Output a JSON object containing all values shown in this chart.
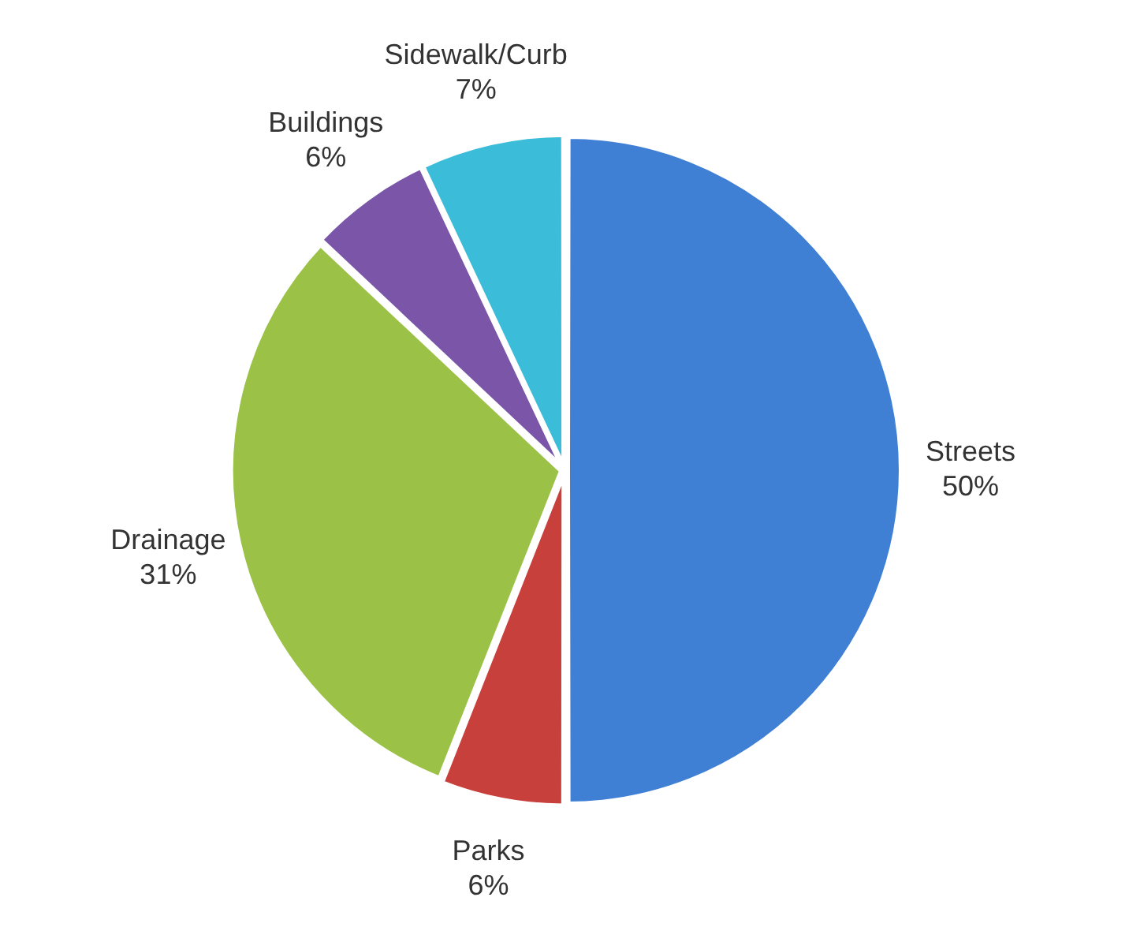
{
  "chart_data": {
    "type": "pie",
    "categories": [
      "Streets",
      "Parks",
      "Drainage",
      "Buildings",
      "Sidewalk/Curb"
    ],
    "values": [
      50,
      6,
      31,
      6,
      7
    ],
    "colors": [
      "#3f7fd4",
      "#c8403b",
      "#9bc247",
      "#7a55a8",
      "#3bbcd8"
    ],
    "value_labels": [
      "50%",
      "6%",
      "31%",
      "6%",
      "7%"
    ],
    "legend": false
  }
}
